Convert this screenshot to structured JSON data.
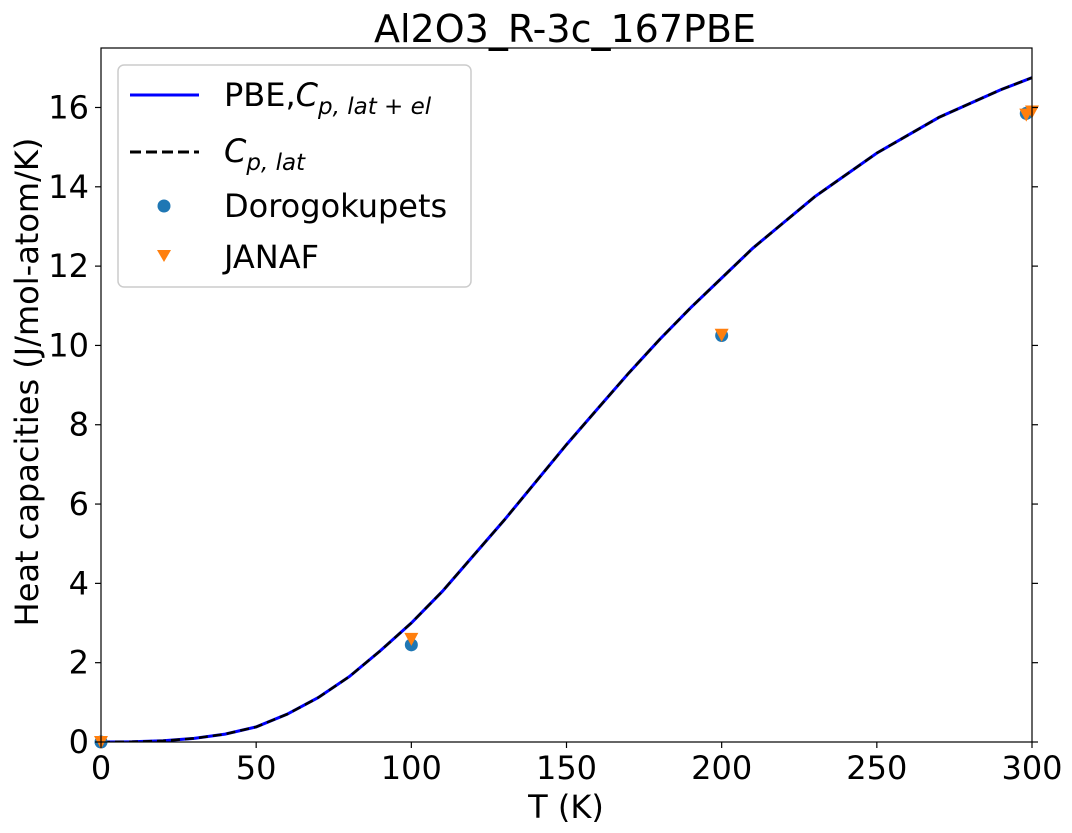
{
  "chart_data": {
    "type": "line",
    "title": "Al2O3_R-3c_167PBE",
    "xlabel": "T (K)",
    "ylabel": "Heat capacities (J/mol-atom/K)",
    "xlim": [
      0,
      300
    ],
    "ylim": [
      0,
      17.5
    ],
    "xticks": [
      0,
      50,
      100,
      150,
      200,
      250,
      300
    ],
    "yticks": [
      0,
      2,
      4,
      6,
      8,
      10,
      12,
      14,
      16
    ],
    "xtick_labels": [
      "0",
      "50",
      "100",
      "150",
      "200",
      "250",
      "300"
    ],
    "ytick_labels": [
      "0",
      "2",
      "4",
      "6",
      "8",
      "10",
      "12",
      "14",
      "16"
    ],
    "grid": false,
    "legend_position": "upper-left",
    "series": [
      {
        "name": "PBE,C_p,lat+el",
        "kind": "line",
        "style": "solid",
        "color": "#0000ff",
        "x": [
          0,
          10,
          20,
          30,
          40,
          50,
          60,
          70,
          80,
          90,
          100,
          110,
          120,
          130,
          140,
          150,
          160,
          170,
          180,
          190,
          200,
          210,
          220,
          230,
          240,
          250,
          260,
          270,
          280,
          290,
          300
        ],
        "y": [
          0,
          0.005,
          0.03,
          0.09,
          0.2,
          0.38,
          0.7,
          1.12,
          1.65,
          2.3,
          3.0,
          3.8,
          4.7,
          5.6,
          6.55,
          7.5,
          8.4,
          9.3,
          10.15,
          10.95,
          11.7,
          12.45,
          13.1,
          13.75,
          14.3,
          14.85,
          15.3,
          15.75,
          16.1,
          16.45,
          16.75
        ]
      },
      {
        "name": "C_p,lat",
        "kind": "line",
        "style": "dashed",
        "color": "#000000",
        "x": [
          0,
          10,
          20,
          30,
          40,
          50,
          60,
          70,
          80,
          90,
          100,
          110,
          120,
          130,
          140,
          150,
          160,
          170,
          180,
          190,
          200,
          210,
          220,
          230,
          240,
          250,
          260,
          270,
          280,
          290,
          300
        ],
        "y": [
          0,
          0.005,
          0.03,
          0.09,
          0.2,
          0.38,
          0.7,
          1.12,
          1.65,
          2.3,
          3.0,
          3.8,
          4.7,
          5.6,
          6.55,
          7.5,
          8.4,
          9.3,
          10.15,
          10.95,
          11.7,
          12.45,
          13.1,
          13.75,
          14.3,
          14.85,
          15.3,
          15.75,
          16.1,
          16.45,
          16.75
        ]
      },
      {
        "name": "Dorogokupets",
        "kind": "scatter",
        "marker": "circle",
        "color": "#1f77b4",
        "x": [
          0,
          100,
          200,
          298.15
        ],
        "y": [
          0,
          2.45,
          10.25,
          15.85
        ]
      },
      {
        "name": "JANAF",
        "kind": "scatter",
        "marker": "triangle-down",
        "color": "#ff7f0e",
        "x": [
          0,
          100,
          200,
          298.15,
          300
        ],
        "y": [
          0,
          2.6,
          10.27,
          15.82,
          15.9
        ]
      }
    ]
  },
  "legend": {
    "pbe_prefix": "PBE,",
    "pbe_symbol": "C",
    "pbe_sub": "p, lat + el",
    "lat_symbol": "C",
    "lat_sub": "p, lat",
    "doro": "Dorogokupets",
    "janaf": "JANAF"
  }
}
